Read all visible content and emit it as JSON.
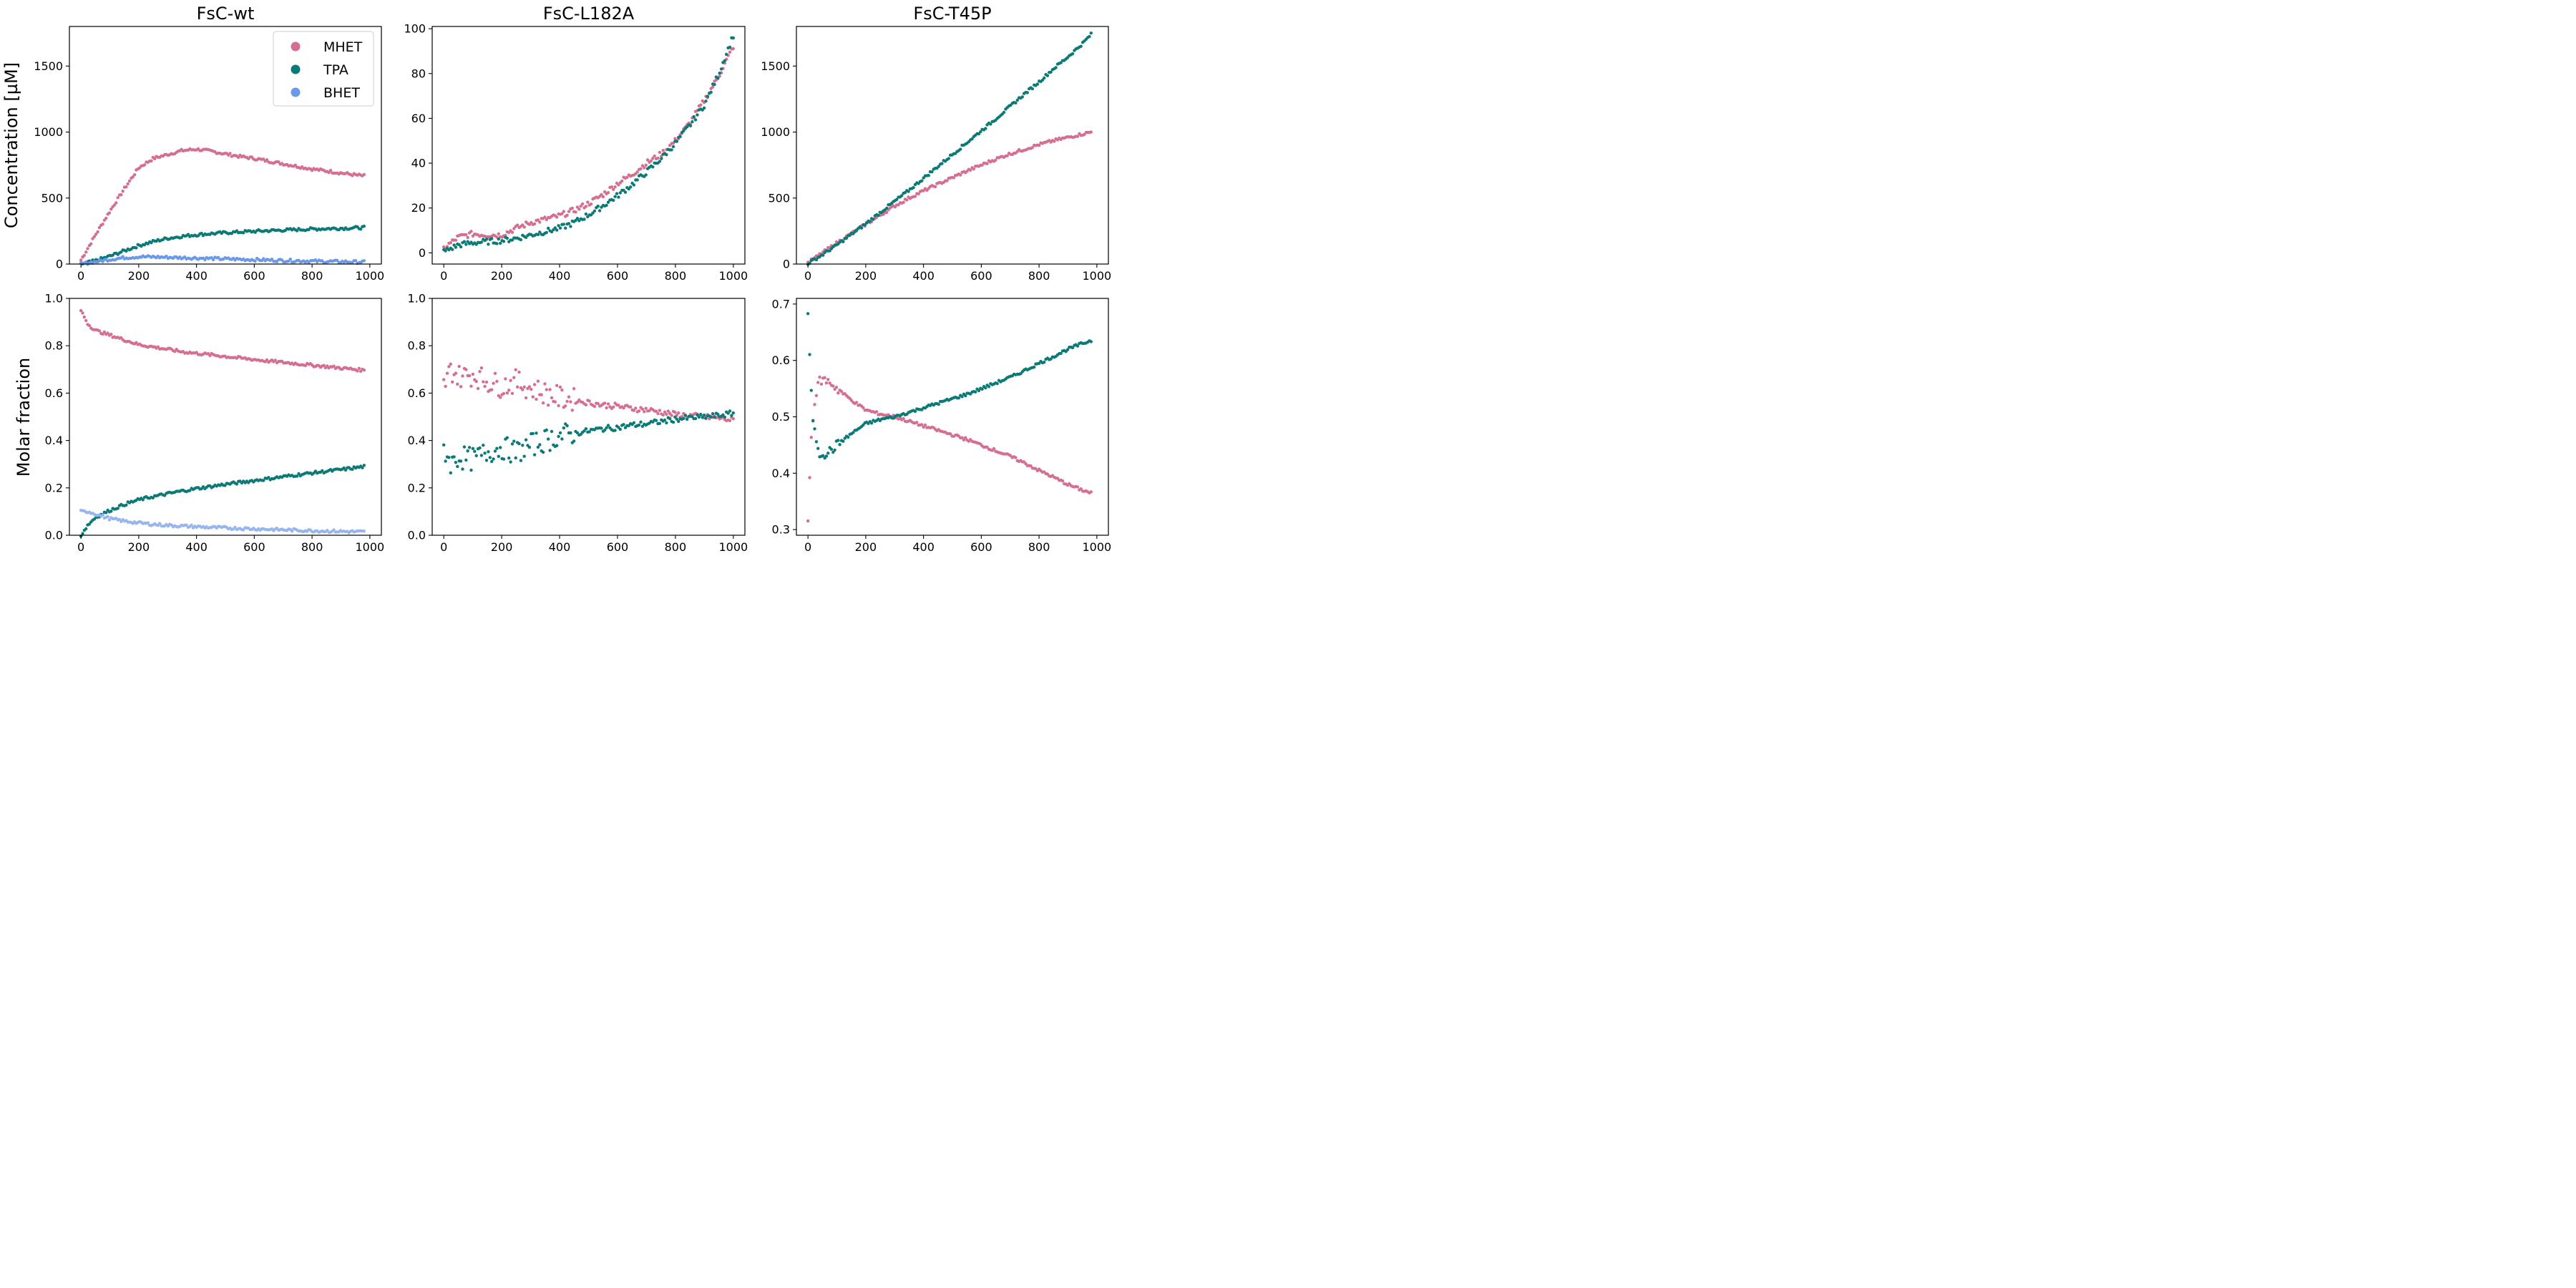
{
  "colors": {
    "MHET": "#d56f8f",
    "TPA": "#0b7a77",
    "BHET": "#6a98ea",
    "BHET_light": "#97b5ee"
  },
  "legend": {
    "items": [
      "MHET",
      "TPA",
      "BHET"
    ],
    "location": "top-right of first panel"
  },
  "row_labels": [
    "Concentration [µM]",
    "Molar fraction"
  ],
  "chart_data": [
    {
      "type": "scatter",
      "title": "FsC-wt",
      "xlabel": "",
      "ylabel": "Concentration [µM]",
      "xlim": [
        -40,
        1040
      ],
      "ylim": [
        0,
        1800
      ],
      "xticks": [
        0,
        200,
        400,
        600,
        800,
        1000
      ],
      "yticks": [
        0,
        500,
        1000,
        1500
      ],
      "series": [
        {
          "name": "MHET",
          "x": [
            0,
            50,
            100,
            150,
            200,
            250,
            300,
            350,
            400,
            450,
            500,
            550,
            600,
            650,
            700,
            750,
            800,
            850,
            900,
            950,
            980
          ],
          "values": [
            30,
            220,
            400,
            570,
            730,
            800,
            830,
            860,
            870,
            855,
            835,
            815,
            800,
            780,
            760,
            740,
            720,
            705,
            690,
            675,
            668
          ]
        },
        {
          "name": "TPA",
          "x": [
            0,
            50,
            100,
            150,
            200,
            250,
            300,
            350,
            400,
            450,
            500,
            550,
            600,
            650,
            700,
            750,
            800,
            850,
            900,
            950,
            980
          ],
          "values": [
            0,
            25,
            60,
            100,
            140,
            170,
            195,
            210,
            222,
            230,
            237,
            243,
            248,
            253,
            257,
            261,
            265,
            268,
            271,
            274,
            276
          ]
        },
        {
          "name": "BHET",
          "x": [
            0,
            50,
            100,
            150,
            200,
            250,
            300,
            350,
            400,
            450,
            500,
            550,
            600,
            650,
            700,
            750,
            800,
            850,
            900,
            950,
            980
          ],
          "values": [
            0,
            18,
            35,
            48,
            55,
            54,
            51,
            48,
            45,
            42,
            39,
            36,
            33,
            30,
            27,
            25,
            22,
            20,
            18,
            16,
            15
          ]
        }
      ]
    },
    {
      "type": "scatter",
      "title": "FsC-L182A",
      "xlabel": "",
      "ylabel": "",
      "xlim": [
        -40,
        1040
      ],
      "ylim": [
        -5,
        101
      ],
      "xticks": [
        0,
        200,
        400,
        600,
        800,
        1000
      ],
      "yticks": [
        0,
        20,
        40,
        60,
        80,
        100
      ],
      "series": [
        {
          "name": "MHET",
          "x": [
            0,
            50,
            100,
            150,
            200,
            250,
            300,
            350,
            400,
            450,
            500,
            550,
            600,
            650,
            700,
            750,
            800,
            850,
            900,
            950,
            1000
          ],
          "values": [
            2,
            7,
            8.5,
            8,
            8,
            11,
            13.5,
            15,
            16.5,
            19,
            22,
            26,
            31,
            35,
            40,
            44,
            50,
            58,
            68,
            79,
            92
          ]
        },
        {
          "name": "TPA",
          "x": [
            0,
            50,
            100,
            150,
            200,
            250,
            300,
            350,
            400,
            450,
            500,
            550,
            600,
            650,
            700,
            750,
            800,
            850,
            900,
            950,
            1000
          ],
          "values": [
            0.5,
            3.5,
            4.5,
            5,
            5.5,
            6.5,
            8,
            9.5,
            11,
            13.5,
            17,
            21,
            25.5,
            30.5,
            36,
            42,
            49,
            57,
            66,
            80,
            97
          ]
        }
      ]
    },
    {
      "type": "scatter",
      "title": "FsC-T45P",
      "xlabel": "",
      "ylabel": "",
      "xlim": [
        -40,
        1040
      ],
      "ylim": [
        0,
        1800
      ],
      "xticks": [
        0,
        200,
        400,
        600,
        800,
        1000
      ],
      "yticks": [
        0,
        500,
        1000,
        1500
      ],
      "series": [
        {
          "name": "MHET",
          "x": [
            0,
            50,
            100,
            150,
            200,
            250,
            300,
            350,
            400,
            450,
            500,
            550,
            600,
            650,
            700,
            750,
            800,
            850,
            900,
            950,
            980
          ],
          "values": [
            10,
            85,
            160,
            230,
            300,
            370,
            440,
            500,
            555,
            605,
            655,
            705,
            750,
            795,
            835,
            870,
            905,
            935,
            960,
            985,
            1000
          ]
        },
        {
          "name": "TPA",
          "x": [
            0,
            50,
            100,
            150,
            200,
            250,
            300,
            350,
            400,
            450,
            500,
            550,
            600,
            650,
            700,
            750,
            800,
            850,
            900,
            950,
            980
          ],
          "values": [
            5,
            70,
            145,
            225,
            305,
            390,
            475,
            560,
            650,
            740,
            830,
            920,
            1010,
            1100,
            1195,
            1290,
            1380,
            1480,
            1570,
            1670,
            1740
          ]
        }
      ]
    },
    {
      "type": "scatter",
      "title": "",
      "xlabel": "",
      "ylabel": "Molar fraction",
      "xlim": [
        -40,
        1040
      ],
      "ylim": [
        0,
        1.0
      ],
      "xticks": [
        0,
        200,
        400,
        600,
        800,
        1000
      ],
      "yticks": [
        0.0,
        0.2,
        0.4,
        0.6,
        0.8,
        1.0
      ],
      "series": [
        {
          "name": "MHET",
          "x": [
            0,
            25,
            50,
            100,
            150,
            200,
            250,
            300,
            350,
            400,
            450,
            500,
            550,
            600,
            650,
            700,
            750,
            800,
            850,
            900,
            950,
            980
          ],
          "values": [
            0.95,
            0.89,
            0.865,
            0.845,
            0.825,
            0.805,
            0.795,
            0.785,
            0.775,
            0.768,
            0.762,
            0.755,
            0.748,
            0.742,
            0.735,
            0.73,
            0.724,
            0.718,
            0.712,
            0.706,
            0.7,
            0.697
          ]
        },
        {
          "name": "TPA",
          "x": [
            0,
            25,
            50,
            100,
            150,
            200,
            250,
            300,
            350,
            400,
            450,
            500,
            550,
            600,
            650,
            700,
            750,
            800,
            850,
            900,
            950,
            980
          ],
          "values": [
            0.0,
            0.045,
            0.075,
            0.105,
            0.13,
            0.15,
            0.163,
            0.175,
            0.187,
            0.197,
            0.206,
            0.215,
            0.223,
            0.231,
            0.239,
            0.247,
            0.255,
            0.263,
            0.27,
            0.277,
            0.285,
            0.29
          ]
        },
        {
          "name": "BHET",
          "x": [
            0,
            25,
            50,
            100,
            150,
            200,
            250,
            300,
            350,
            400,
            450,
            500,
            550,
            600,
            650,
            700,
            750,
            800,
            850,
            900,
            950,
            980
          ],
          "values": [
            0.1,
            0.1,
            0.09,
            0.07,
            0.06,
            0.052,
            0.046,
            0.042,
            0.039,
            0.036,
            0.033,
            0.031,
            0.029,
            0.027,
            0.025,
            0.023,
            0.021,
            0.019,
            0.018,
            0.016,
            0.015,
            0.014
          ]
        }
      ]
    },
    {
      "type": "scatter",
      "title": "",
      "xlabel": "",
      "ylabel": "",
      "xlim": [
        -40,
        1040
      ],
      "ylim": [
        0,
        1.0
      ],
      "xticks": [
        0,
        200,
        400,
        600,
        800,
        1000
      ],
      "yticks": [
        0.0,
        0.2,
        0.4,
        0.6,
        0.8,
        1.0
      ],
      "series": [
        {
          "name": "MHET",
          "x": [
            0,
            25,
            50,
            100,
            150,
            200,
            250,
            300,
            350,
            400,
            450,
            500,
            550,
            600,
            650,
            700,
            750,
            800,
            850,
            900,
            950,
            1000
          ],
          "values": [
            0.63,
            0.7,
            0.67,
            0.68,
            0.65,
            0.63,
            0.65,
            0.62,
            0.6,
            0.58,
            0.57,
            0.56,
            0.55,
            0.545,
            0.535,
            0.53,
            0.52,
            0.51,
            0.505,
            0.5,
            0.495,
            0.485
          ]
        },
        {
          "name": "TPA",
          "x": [
            0,
            25,
            50,
            100,
            150,
            200,
            250,
            300,
            350,
            400,
            450,
            500,
            550,
            600,
            650,
            700,
            750,
            800,
            850,
            900,
            950,
            1000
          ],
          "values": [
            0.37,
            0.3,
            0.33,
            0.32,
            0.35,
            0.37,
            0.35,
            0.38,
            0.4,
            0.42,
            0.43,
            0.44,
            0.45,
            0.455,
            0.465,
            0.47,
            0.48,
            0.49,
            0.495,
            0.5,
            0.505,
            0.515
          ]
        }
      ]
    },
    {
      "type": "scatter",
      "title": "",
      "xlabel": "",
      "ylabel": "",
      "xlim": [
        -40,
        1040
      ],
      "ylim": [
        0.29,
        0.71
      ],
      "xticks": [
        0,
        200,
        400,
        600,
        800,
        1000
      ],
      "yticks": [
        0.3,
        0.4,
        0.5,
        0.6,
        0.7
      ],
      "series": [
        {
          "name": "MHET",
          "x": [
            0,
            10,
            20,
            40,
            60,
            80,
            100,
            150,
            200,
            250,
            300,
            350,
            400,
            450,
            500,
            550,
            600,
            650,
            700,
            750,
            800,
            850,
            900,
            950,
            980
          ],
          "values": [
            0.315,
            0.45,
            0.52,
            0.565,
            0.565,
            0.56,
            0.55,
            0.53,
            0.512,
            0.505,
            0.5,
            0.492,
            0.484,
            0.476,
            0.468,
            0.46,
            0.45,
            0.44,
            0.43,
            0.418,
            0.405,
            0.393,
            0.38,
            0.37,
            0.365
          ]
        },
        {
          "name": "TPA",
          "x": [
            0,
            10,
            20,
            40,
            60,
            80,
            100,
            150,
            200,
            250,
            300,
            350,
            400,
            450,
            500,
            550,
            600,
            650,
            700,
            750,
            800,
            850,
            900,
            950,
            980
          ],
          "values": [
            0.685,
            0.55,
            0.48,
            0.435,
            0.435,
            0.44,
            0.45,
            0.47,
            0.488,
            0.495,
            0.5,
            0.508,
            0.516,
            0.524,
            0.532,
            0.54,
            0.55,
            0.56,
            0.57,
            0.582,
            0.595,
            0.607,
            0.62,
            0.63,
            0.635
          ]
        }
      ]
    }
  ]
}
